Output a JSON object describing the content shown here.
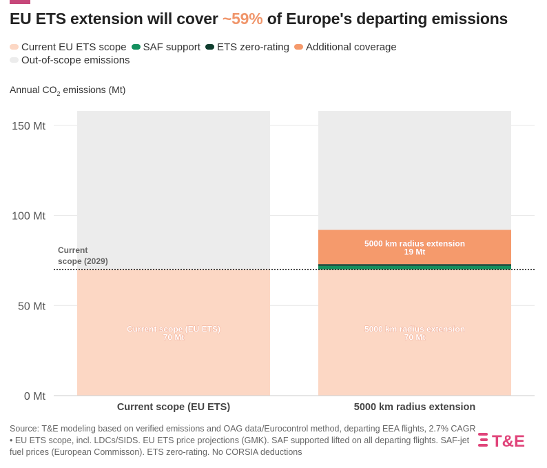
{
  "title": {
    "before": "EU ETS extension will cover ",
    "highlight": "~59%",
    "after": " of Europe's departing emissions"
  },
  "legend": [
    {
      "label": "Current EU ETS scope",
      "color": "#fcd7c4"
    },
    {
      "label": "SAF support",
      "color": "#14905e"
    },
    {
      "label": "ETS zero-rating",
      "color": "#0f3d2e"
    },
    {
      "label": "Additional coverage",
      "color": "#f59a6c"
    },
    {
      "label": "Out-of-scope emissions",
      "color": "#ececec"
    }
  ],
  "axis_title": {
    "prefix": "Annual CO",
    "sub": "2",
    "suffix": " emissions (Mt)"
  },
  "chart_data": {
    "type": "bar",
    "stacked": true,
    "categories": [
      "Current scope (EU ETS)",
      "5000 km radius extension"
    ],
    "ylim": [
      0,
      158
    ],
    "yticks": [
      0,
      50,
      100,
      150
    ],
    "ytick_labels": [
      "0 Mt",
      "50 Mt",
      "100 Mt",
      "150 Mt"
    ],
    "reference_line": {
      "value": 70,
      "label_line1": "Current",
      "label_line2": "scope (2029)"
    },
    "series": [
      {
        "name": "Current EU ETS scope",
        "color": "#fcd7c4",
        "values": [
          70,
          70
        ]
      },
      {
        "name": "SAF support",
        "color": "#14905e",
        "values": [
          0,
          2
        ]
      },
      {
        "name": "ETS zero-rating",
        "color": "#0f3d2e",
        "values": [
          0,
          1
        ]
      },
      {
        "name": "Additional coverage",
        "color": "#f59a6c",
        "values": [
          0,
          19
        ]
      },
      {
        "name": "Out-of-scope emissions",
        "color": "#ececec",
        "values": [
          88,
          66
        ]
      }
    ],
    "bar_labels": [
      {
        "category_index": 0,
        "value": 35,
        "line1": "Current scope (EU ETS)",
        "line2": "70 Mt"
      },
      {
        "category_index": 1,
        "value": 35,
        "line1": "5000 km radius extension",
        "line2": "70 Mt"
      },
      {
        "category_index": 1,
        "value": 82.5,
        "line1": "5000 km radius extension",
        "line2": "19 Mt"
      }
    ]
  },
  "source": "Source: T&E modeling based on verified emissions and OAG data/Eurocontrol method, departing EEA flights, 2.7% CAGR • EU ETS scope, incl. LDCs/SIDS. EU ETS price projections (GMK). SAF supported lifted on all departing flights. SAF-jet fuel prices (European Commisson). ETS zero-rating. No CORSIA deductions",
  "logo_text": "T&E",
  "logo_color": "#e0447a"
}
